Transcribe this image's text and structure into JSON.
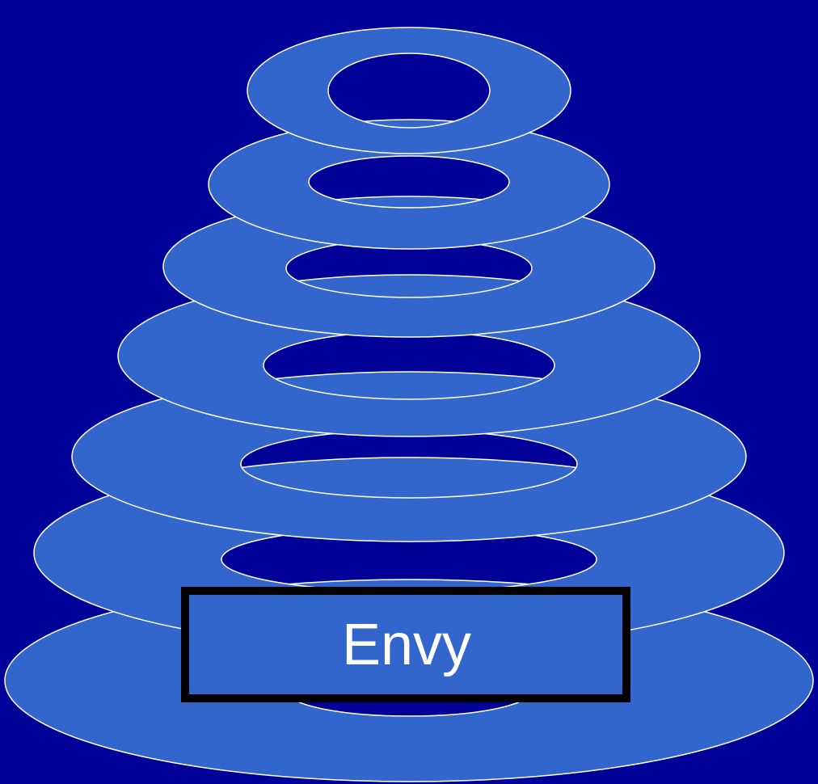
{
  "label": "Envy"
}
